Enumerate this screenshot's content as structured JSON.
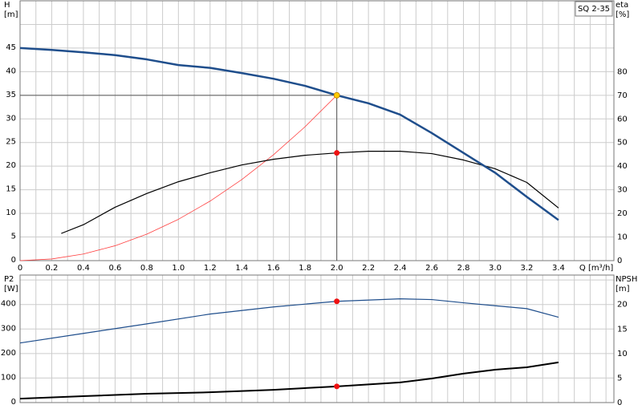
{
  "chart_data": [
    {
      "type": "line",
      "title": "SQ 2-35",
      "y_label": [
        "H",
        "[m]"
      ],
      "y2_label": [
        "eta",
        "[%]"
      ],
      "x_label": "Q [m³/h]",
      "xlim": [
        0,
        3.75
      ],
      "ylim": [
        0,
        55
      ],
      "y2lim": [
        0,
        110
      ],
      "xticks": [
        0,
        0.2,
        0.4,
        0.6,
        0.8,
        {
          "value": 1,
          "label": "1.0"
        },
        1.2,
        1.4,
        1.6,
        1.8,
        {
          "value": 2,
          "label": "2.0"
        },
        2.2,
        2.4,
        2.6,
        2.8,
        {
          "value": 3,
          "label": "3.0"
        },
        3.2,
        3.4
      ],
      "xgrid": [
        0.1,
        0.2,
        0.3,
        0.4,
        0.5,
        0.6,
        0.7,
        0.8,
        0.9,
        1,
        1.1,
        1.2,
        1.3,
        1.4,
        1.5,
        1.6,
        1.7,
        1.8,
        1.9,
        2,
        2.1,
        2.2,
        2.3,
        2.4,
        2.5,
        2.6,
        2.7,
        2.8,
        2.9,
        3,
        3.1,
        3.2,
        3.3,
        3.4,
        3.5,
        3.6,
        3.7
      ],
      "yticks": [
        0,
        5,
        10,
        15,
        20,
        25,
        30,
        35,
        40,
        45
      ],
      "ygrid": [
        5,
        10,
        15,
        20,
        25,
        30,
        35,
        40,
        45,
        50
      ],
      "y2ticks": [
        0,
        10,
        20,
        30,
        40,
        50,
        60,
        70,
        80
      ],
      "series": [
        {
          "color": "#ff4040",
          "linewidth": 0.8,
          "x": [
            0,
            0.2,
            0.4,
            0.6,
            0.8,
            1,
            1.2,
            1.4,
            1.6,
            1.8,
            2
          ],
          "values": [
            0,
            0.35,
            1.4,
            3.15,
            5.6,
            8.75,
            12.6,
            17.15,
            22.4,
            28.35,
            35
          ]
        },
        {
          "color": "#000000",
          "linewidth": 1.2,
          "axis": "y2",
          "x": [
            0.26,
            0.4,
            0.6,
            0.8,
            1,
            1.2,
            1.4,
            1.6,
            1.8,
            2,
            2.2,
            2.4,
            2.6,
            2.8,
            3,
            3.2,
            3.4
          ],
          "values": [
            11.5,
            15.2,
            22.6,
            28.4,
            33.4,
            37.2,
            40.5,
            42.9,
            44.6,
            45.6,
            46.3,
            46.3,
            45.3,
            42.6,
            38.9,
            33.1,
            22.3
          ]
        },
        {
          "color": "#1f4e8c",
          "linewidth": 2.5,
          "x": [
            0,
            0.2,
            0.4,
            0.6,
            0.8,
            1,
            1.2,
            1.4,
            1.6,
            1.8,
            2,
            2.2,
            2.4,
            2.6,
            2.8,
            3,
            3.2,
            3.4
          ],
          "values": [
            45,
            44.6,
            44.1,
            43.5,
            42.6,
            41.4,
            40.8,
            39.7,
            38.5,
            37,
            35,
            33.3,
            30.9,
            27,
            22.8,
            18.6,
            13.5,
            8.6
          ]
        }
      ],
      "markers": [
        {
          "x": 2,
          "y": 45.6,
          "axis": "y2",
          "color": "#ee1111"
        },
        {
          "x": 2,
          "y": 35,
          "color": "#ffcc00",
          "guides": true
        }
      ]
    },
    {
      "type": "line",
      "y_label": [
        "P2",
        "[W]"
      ],
      "y2_label": [
        "NPSH",
        "[m]"
      ],
      "xlim": [
        0,
        3.75
      ],
      "ylim": [
        0,
        520
      ],
      "y2lim": [
        0,
        26
      ],
      "xgrid": [
        0.1,
        0.2,
        0.3,
        0.4,
        0.5,
        0.6,
        0.7,
        0.8,
        0.9,
        1,
        1.1,
        1.2,
        1.3,
        1.4,
        1.5,
        1.6,
        1.7,
        1.8,
        1.9,
        2,
        2.1,
        2.2,
        2.3,
        2.4,
        2.5,
        2.6,
        2.7,
        2.8,
        2.9,
        3,
        3.1,
        3.2,
        3.3,
        3.4,
        3.5,
        3.6,
        3.7
      ],
      "yticks": [
        0,
        100,
        200,
        300,
        400
      ],
      "ygrid": [
        100,
        200,
        300,
        400,
        500
      ],
      "y2ticks": [
        0,
        5,
        10,
        15,
        20
      ],
      "series": [
        {
          "color": "#1f4e8c",
          "linewidth": 1.2,
          "x": [
            0,
            0.4,
            0.8,
            1.2,
            1.6,
            2,
            2.4,
            2.6,
            2.8,
            3,
            3.2,
            3.4
          ],
          "values": [
            243,
            282,
            321,
            361,
            390,
            413,
            423,
            420,
            407,
            395,
            383,
            348
          ]
        },
        {
          "color": "#000000",
          "linewidth": 2,
          "axis": "y2",
          "x": [
            0,
            0.4,
            0.8,
            1.2,
            1.6,
            2,
            2.4,
            2.6,
            2.8,
            3,
            3.2,
            3.4
          ],
          "values": [
            0.8,
            1.3,
            1.8,
            2.1,
            2.6,
            3.3,
            4.1,
            4.9,
            5.9,
            6.7,
            7.2,
            8.2
          ]
        }
      ],
      "markers": [
        {
          "x": 2,
          "y": 413,
          "color": "#ee1111"
        },
        {
          "x": 2,
          "y": 3.3,
          "axis": "y2",
          "color": "#ee1111"
        }
      ]
    }
  ]
}
